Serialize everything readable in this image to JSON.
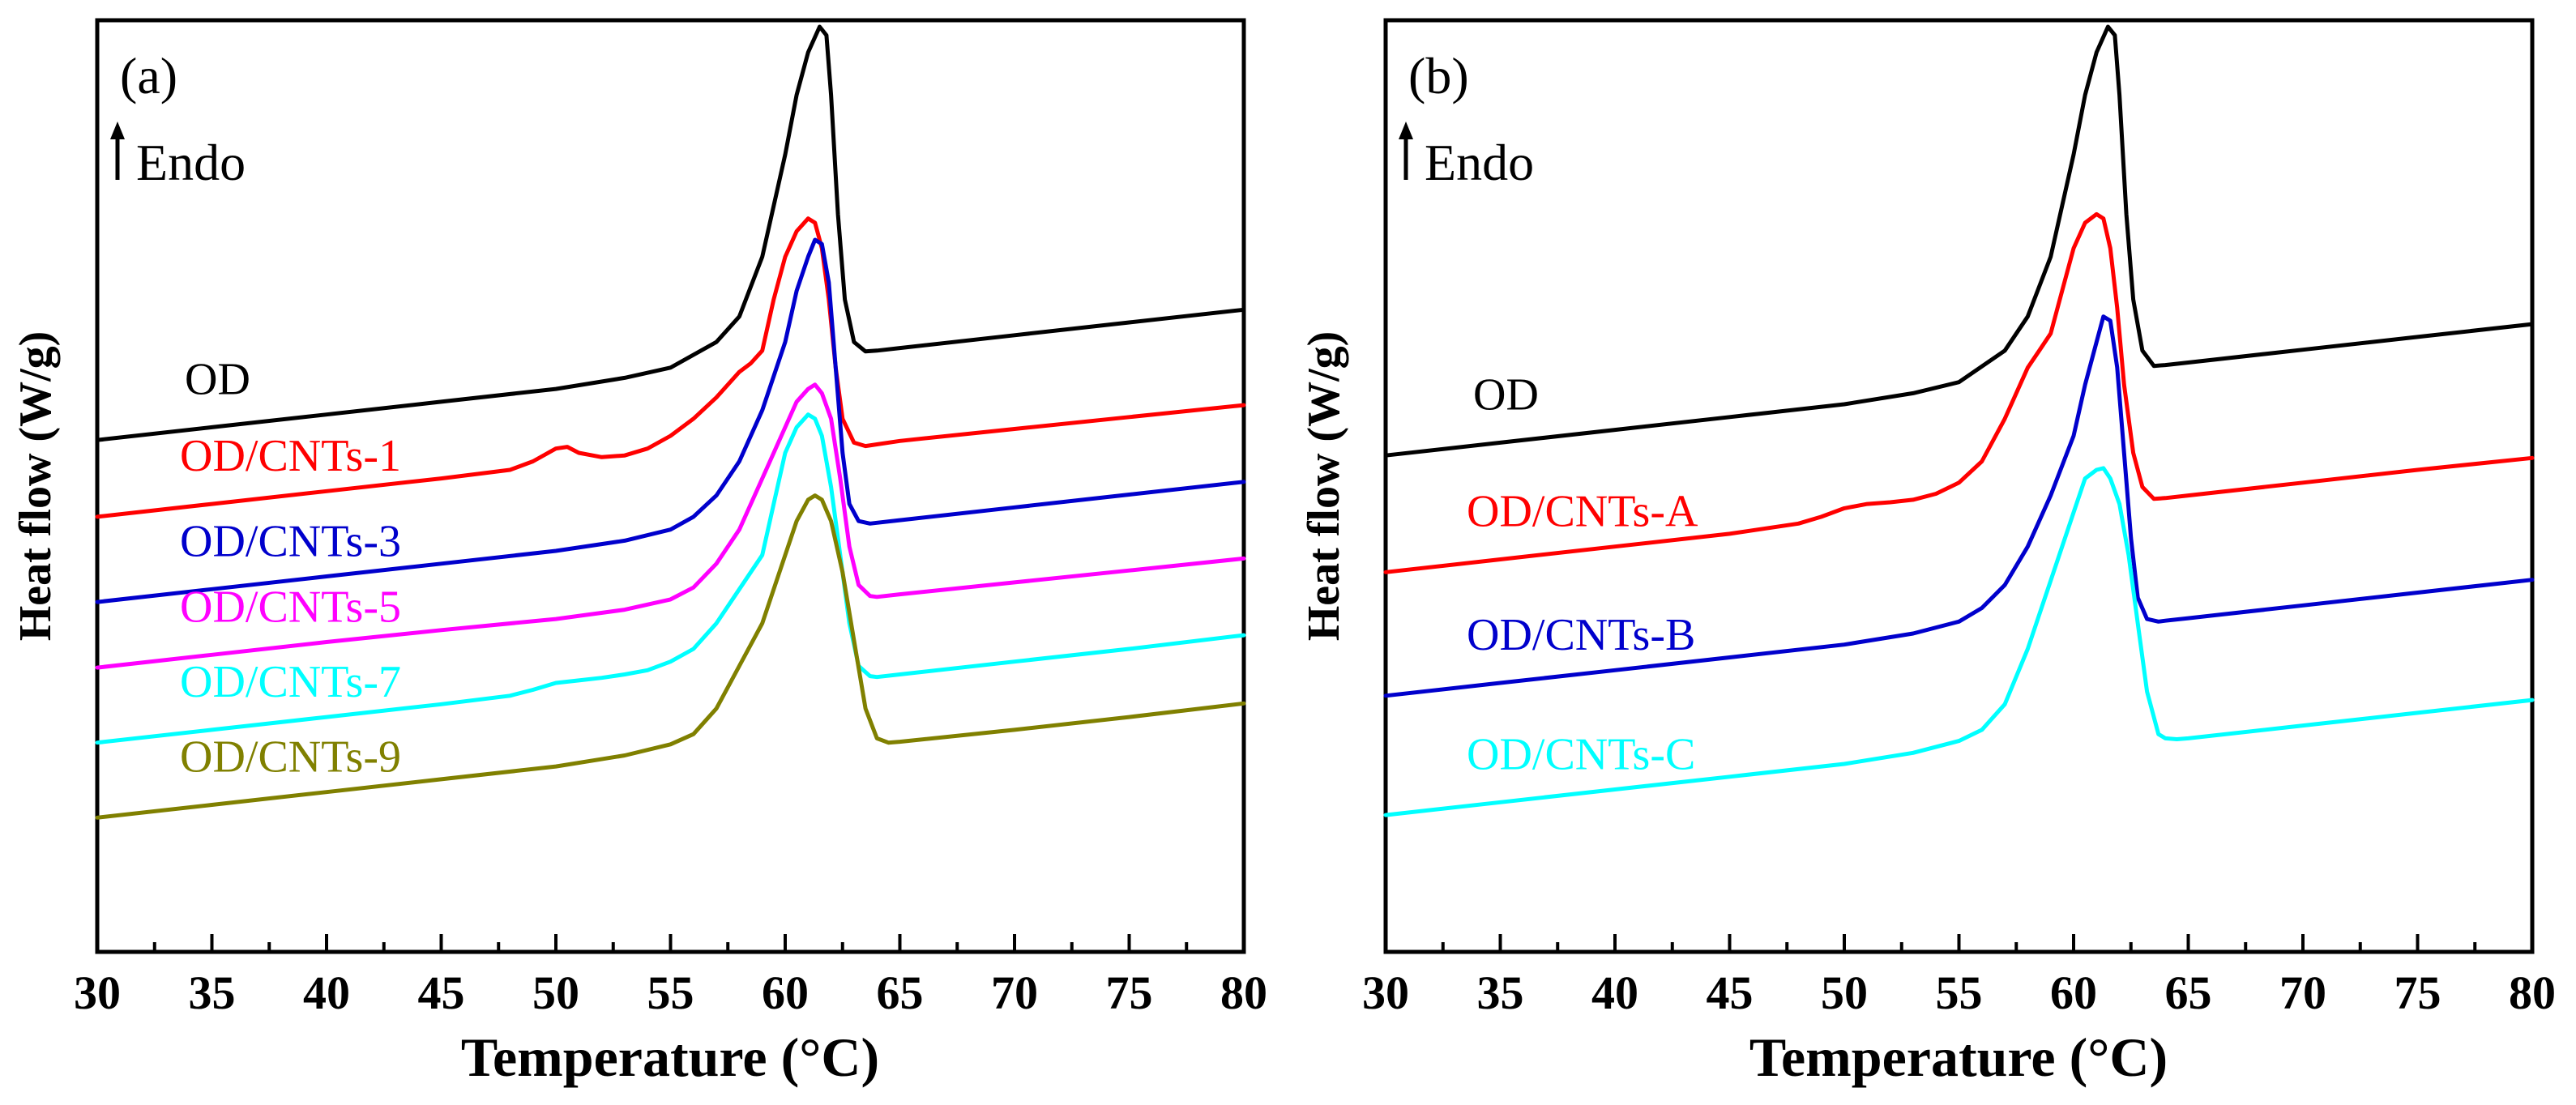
{
  "chart_data": [
    {
      "type": "line",
      "panel_label": "(a)",
      "annotation": "Endo",
      "xlabel": "Temperature (°C)",
      "ylabel": "Heat flow (W/g)",
      "xlim": [
        30,
        80
      ],
      "ylim": [
        0,
        1
      ],
      "xticks": [
        "30",
        "35",
        "40",
        "45",
        "50",
        "55",
        "60",
        "65",
        "70",
        "75",
        "80"
      ],
      "yticks_shown": false,
      "series": [
        {
          "name": "OD",
          "color": "#000000",
          "x": [
            30,
            35,
            40,
            45,
            50,
            53,
            55,
            57,
            58,
            59,
            60,
            60.5,
            61,
            61.5,
            61.8,
            62,
            62.3,
            62.6,
            63,
            63.5,
            64,
            65,
            70,
            75,
            80
          ],
          "y": [
            0.515,
            0.53,
            0.545,
            0.56,
            0.575,
            0.588,
            0.6,
            0.63,
            0.66,
            0.73,
            0.85,
            0.92,
            0.97,
            1.0,
            0.99,
            0.92,
            0.78,
            0.68,
            0.63,
            0.619,
            0.62,
            0.623,
            0.638,
            0.653,
            0.668
          ]
        },
        {
          "name": "OD/CNTs-1",
          "color": "#ff0000",
          "x": [
            30,
            35,
            40,
            45,
            48,
            49,
            50,
            50.5,
            51,
            52,
            53,
            54,
            55,
            56,
            57,
            58,
            58.5,
            59,
            59.5,
            60,
            60.5,
            61,
            61.3,
            61.6,
            61.9,
            62.2,
            62.5,
            63,
            63.5,
            64,
            65,
            70,
            75,
            80
          ],
          "y": [
            0.425,
            0.44,
            0.455,
            0.47,
            0.48,
            0.49,
            0.505,
            0.507,
            0.5,
            0.495,
            0.497,
            0.505,
            0.52,
            0.54,
            0.565,
            0.595,
            0.605,
            0.62,
            0.68,
            0.73,
            0.76,
            0.775,
            0.77,
            0.74,
            0.68,
            0.6,
            0.54,
            0.512,
            0.508,
            0.51,
            0.514,
            0.528,
            0.542,
            0.556
          ]
        },
        {
          "name": "OD/CNTs-3",
          "color": "#0000cc",
          "x": [
            30,
            35,
            40,
            45,
            50,
            53,
            55,
            56,
            57,
            58,
            59,
            60,
            60.5,
            61,
            61.3,
            61.6,
            61.9,
            62.2,
            62.5,
            62.8,
            63.2,
            63.7,
            64,
            65,
            70,
            75,
            80
          ],
          "y": [
            0.325,
            0.34,
            0.355,
            0.37,
            0.385,
            0.397,
            0.41,
            0.425,
            0.45,
            0.49,
            0.55,
            0.63,
            0.69,
            0.73,
            0.75,
            0.745,
            0.7,
            0.6,
            0.5,
            0.44,
            0.42,
            0.417,
            0.418,
            0.421,
            0.436,
            0.451,
            0.466
          ]
        },
        {
          "name": "OD/CNTs-5",
          "color": "#ff00ff",
          "x": [
            30,
            35,
            40,
            45,
            50,
            53,
            55,
            56,
            57,
            58,
            59,
            60,
            60.5,
            61,
            61.3,
            61.6,
            62,
            62.4,
            62.8,
            63.2,
            63.7,
            64,
            65,
            70,
            75,
            80
          ],
          "y": [
            0.248,
            0.263,
            0.278,
            0.292,
            0.305,
            0.316,
            0.328,
            0.342,
            0.37,
            0.41,
            0.47,
            0.53,
            0.56,
            0.575,
            0.58,
            0.57,
            0.54,
            0.47,
            0.39,
            0.345,
            0.332,
            0.331,
            0.334,
            0.348,
            0.362,
            0.376
          ]
        },
        {
          "name": "OD/CNTs-7",
          "color": "#00ffff",
          "x": [
            30,
            35,
            40,
            45,
            48,
            49,
            50,
            51,
            52,
            53,
            54,
            55,
            56,
            57,
            58,
            58.5,
            59,
            59.5,
            60,
            60.5,
            61,
            61.3,
            61.6,
            62,
            62.4,
            62.8,
            63.2,
            63.7,
            64,
            65,
            70,
            75,
            80
          ],
          "y": [
            0.16,
            0.175,
            0.19,
            0.205,
            0.215,
            0.222,
            0.23,
            0.233,
            0.236,
            0.24,
            0.245,
            0.255,
            0.27,
            0.3,
            0.34,
            0.36,
            0.38,
            0.44,
            0.5,
            0.53,
            0.545,
            0.54,
            0.52,
            0.46,
            0.38,
            0.3,
            0.25,
            0.238,
            0.237,
            0.24,
            0.255,
            0.27,
            0.286
          ]
        },
        {
          "name": "OD/CNTs-9",
          "color": "#808000",
          "x": [
            30,
            35,
            40,
            45,
            50,
            53,
            55,
            56,
            57,
            58,
            59,
            60,
            60.5,
            61,
            61.3,
            61.6,
            62,
            62.5,
            63,
            63.5,
            64,
            64.5,
            65,
            70,
            75,
            80
          ],
          "y": [
            0.072,
            0.087,
            0.102,
            0.117,
            0.132,
            0.145,
            0.158,
            0.17,
            0.2,
            0.25,
            0.3,
            0.38,
            0.42,
            0.445,
            0.45,
            0.445,
            0.42,
            0.36,
            0.28,
            0.2,
            0.165,
            0.16,
            0.161,
            0.175,
            0.19,
            0.206
          ]
        }
      ]
    },
    {
      "type": "line",
      "panel_label": "(b)",
      "annotation": "Endo",
      "xlabel": "Temperature (°C)",
      "ylabel": "Heat flow (W/g)",
      "xlim": [
        30,
        80
      ],
      "ylim": [
        0,
        1
      ],
      "xticks": [
        "30",
        "35",
        "40",
        "45",
        "50",
        "55",
        "60",
        "65",
        "70",
        "75",
        "80"
      ],
      "yticks_shown": false,
      "series": [
        {
          "name": "OD",
          "color": "#000000",
          "x": [
            30,
            35,
            40,
            45,
            50,
            53,
            55,
            57,
            58,
            59,
            60,
            60.5,
            61,
            61.5,
            61.8,
            62,
            62.3,
            62.6,
            63,
            63.5,
            64,
            65,
            70,
            75,
            80
          ],
          "y": [
            0.497,
            0.512,
            0.527,
            0.542,
            0.557,
            0.57,
            0.583,
            0.62,
            0.66,
            0.73,
            0.85,
            0.92,
            0.97,
            1.0,
            0.99,
            0.92,
            0.78,
            0.68,
            0.62,
            0.602,
            0.603,
            0.606,
            0.621,
            0.636,
            0.651
          ]
        },
        {
          "name": "OD/CNTs-A",
          "color": "#ff0000",
          "x": [
            30,
            35,
            40,
            45,
            48,
            49,
            50,
            51,
            52,
            53,
            54,
            55,
            56,
            57,
            58,
            58.5,
            59,
            59.5,
            60,
            60.5,
            61,
            61.3,
            61.6,
            61.9,
            62.2,
            62.6,
            63,
            63.5,
            64,
            65,
            70,
            75,
            80
          ],
          "y": [
            0.36,
            0.375,
            0.39,
            0.405,
            0.417,
            0.425,
            0.435,
            0.44,
            0.442,
            0.445,
            0.452,
            0.465,
            0.49,
            0.54,
            0.6,
            0.62,
            0.64,
            0.69,
            0.74,
            0.77,
            0.78,
            0.775,
            0.74,
            0.67,
            0.58,
            0.5,
            0.46,
            0.446,
            0.447,
            0.45,
            0.465,
            0.48,
            0.494
          ]
        },
        {
          "name": "OD/CNTs-B",
          "color": "#0000cc",
          "x": [
            30,
            35,
            40,
            45,
            50,
            53,
            55,
            56,
            57,
            58,
            59,
            60,
            60.5,
            61,
            61.3,
            61.6,
            61.9,
            62.2,
            62.5,
            62.8,
            63.2,
            63.7,
            64,
            65,
            70,
            75,
            80
          ],
          "y": [
            0.215,
            0.23,
            0.245,
            0.26,
            0.275,
            0.288,
            0.302,
            0.318,
            0.345,
            0.39,
            0.45,
            0.52,
            0.58,
            0.63,
            0.66,
            0.655,
            0.6,
            0.5,
            0.4,
            0.33,
            0.305,
            0.302,
            0.303,
            0.306,
            0.321,
            0.336,
            0.351
          ]
        },
        {
          "name": "OD/CNTs-C",
          "color": "#00ffff",
          "x": [
            30,
            35,
            40,
            45,
            50,
            53,
            55,
            56,
            57,
            58,
            59,
            60,
            60.5,
            61,
            61.3,
            61.6,
            62,
            62.4,
            62.8,
            63.2,
            63.7,
            64,
            64.5,
            65,
            70,
            75,
            80
          ],
          "y": [
            0.075,
            0.09,
            0.105,
            0.12,
            0.135,
            0.148,
            0.162,
            0.175,
            0.205,
            0.27,
            0.35,
            0.43,
            0.47,
            0.48,
            0.482,
            0.47,
            0.44,
            0.38,
            0.3,
            0.22,
            0.17,
            0.165,
            0.164,
            0.165,
            0.18,
            0.195,
            0.21
          ]
        }
      ]
    }
  ]
}
